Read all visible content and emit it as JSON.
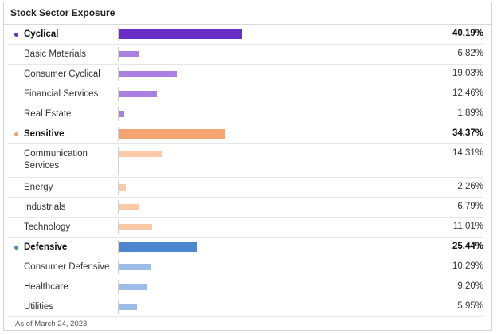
{
  "panel": {
    "title": "Stock Sector Exposure",
    "footer": "As of March 24, 2023"
  },
  "chart_data": {
    "type": "bar",
    "orientation": "horizontal",
    "value_unit": "%",
    "groups": [
      {
        "name": "Cyclical",
        "value": 40.19,
        "value_label": "40.19%",
        "color": "#6a2ec8",
        "sub_color": "#a97fe0",
        "items": [
          {
            "name": "Basic Materials",
            "value": 6.82,
            "value_label": "6.82%"
          },
          {
            "name": "Consumer Cyclical",
            "value": 19.03,
            "value_label": "19.03%"
          },
          {
            "name": "Financial Services",
            "value": 12.46,
            "value_label": "12.46%"
          },
          {
            "name": "Real Estate",
            "value": 1.89,
            "value_label": "1.89%"
          }
        ]
      },
      {
        "name": "Sensitive",
        "value": 34.37,
        "value_label": "34.37%",
        "color": "#f4a373",
        "sub_color": "#f9c9a8",
        "items": [
          {
            "name": "Communication Services",
            "value": 14.31,
            "value_label": "14.31%"
          },
          {
            "name": "Energy",
            "value": 2.26,
            "value_label": "2.26%"
          },
          {
            "name": "Industrials",
            "value": 6.79,
            "value_label": "6.79%"
          },
          {
            "name": "Technology",
            "value": 11.01,
            "value_label": "11.01%"
          }
        ]
      },
      {
        "name": "Defensive",
        "value": 25.44,
        "value_label": "25.44%",
        "color": "#4f86d0",
        "sub_color": "#9dbde8",
        "items": [
          {
            "name": "Consumer Defensive",
            "value": 10.29,
            "value_label": "10.29%"
          },
          {
            "name": "Healthcare",
            "value": 9.2,
            "value_label": "9.20%"
          },
          {
            "name": "Utilities",
            "value": 5.95,
            "value_label": "5.95%"
          }
        ]
      }
    ]
  }
}
